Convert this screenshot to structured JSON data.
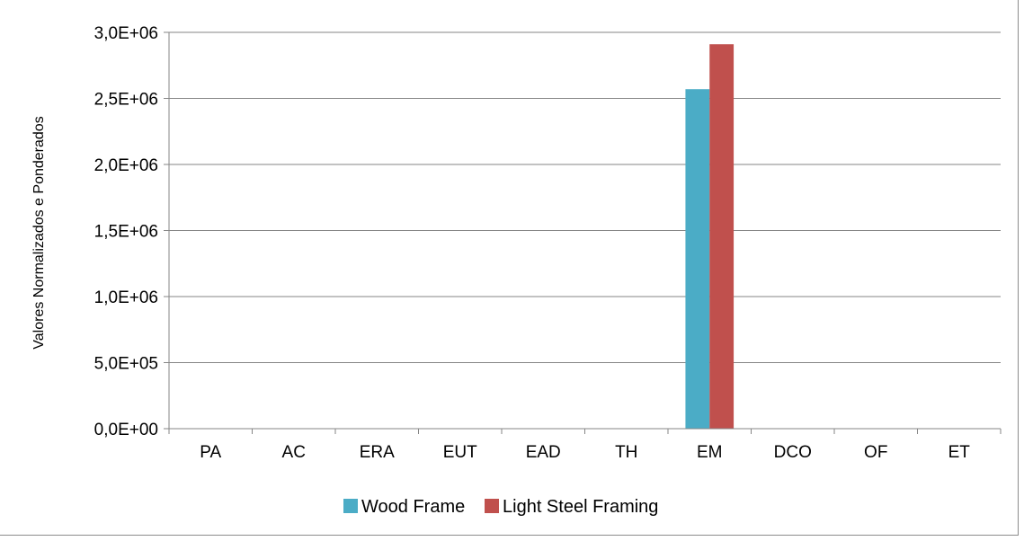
{
  "chart_data": {
    "type": "bar",
    "categories": [
      "PA",
      "AC",
      "ERA",
      "EUT",
      "EAD",
      "TH",
      "EM",
      "DCO",
      "OF",
      "ET"
    ],
    "series": [
      {
        "name": "Wood Frame",
        "color": "#4bacc6",
        "values": [
          0,
          0,
          0,
          0,
          0,
          0,
          2570000,
          0,
          0,
          0
        ]
      },
      {
        "name": "Light Steel Framing",
        "color": "#c0504d",
        "values": [
          0,
          0,
          0,
          0,
          0,
          0,
          2910000,
          0,
          0,
          0
        ]
      }
    ],
    "title": "",
    "xlabel": "",
    "ylabel": "Valores Normalizados e Ponderados",
    "ylim": [
      0,
      3000000
    ],
    "yticks": [
      0,
      500000,
      1000000,
      1500000,
      2000000,
      2500000,
      3000000
    ],
    "ytick_labels": [
      "0,0E+00",
      "5,0E+05",
      "1,0E+06",
      "1,5E+06",
      "2,0E+06",
      "2,5E+06",
      "3,0E+06"
    ],
    "grid": true,
    "legend_position": "bottom"
  }
}
